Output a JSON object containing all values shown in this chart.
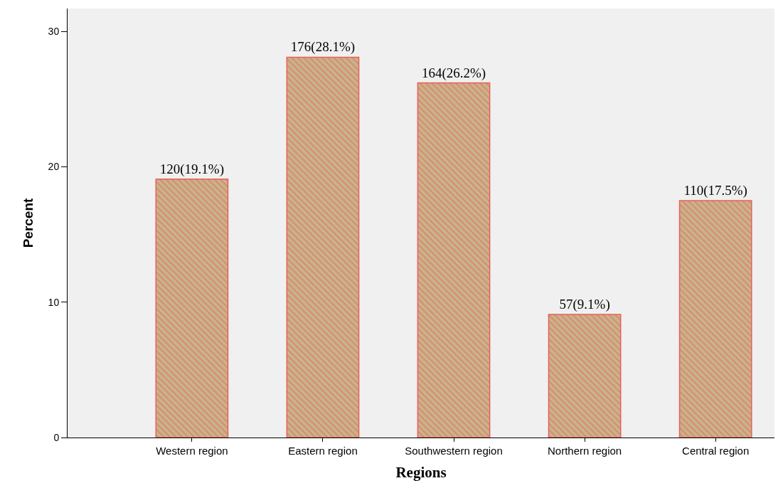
{
  "chart_data": {
    "type": "bar",
    "xlabel": "Regions",
    "ylabel": "Percent",
    "categories": [
      "Western region",
      "Eastern region",
      "Southwestern region",
      "Northern region",
      "Central region"
    ],
    "values": [
      19.1,
      28.1,
      26.2,
      9.1,
      17.5
    ],
    "value_labels": [
      "120(19.1%)",
      "176(28.1%)",
      "164(26.2%)",
      "57(9.1%)",
      "110(17.5%)"
    ],
    "color": "#e8605a",
    "ylim": [
      0,
      31.7
    ],
    "yticks": [
      0,
      10,
      20,
      30
    ],
    "grid": false,
    "legend": false
  }
}
